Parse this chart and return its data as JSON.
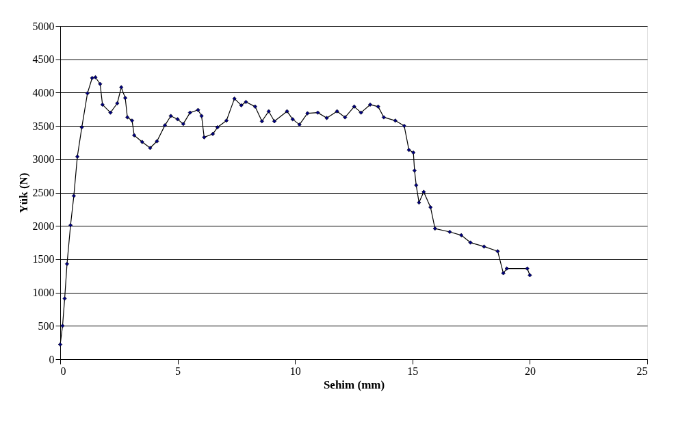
{
  "chart_data": {
    "type": "line",
    "xlabel": "Sehim (mm)",
    "ylabel": "Yük (N)",
    "xlim": [
      0,
      25
    ],
    "ylim": [
      0,
      5000
    ],
    "xticks": [
      0,
      5,
      10,
      15,
      20,
      25
    ],
    "yticks": [
      0,
      500,
      1000,
      1500,
      2000,
      2500,
      3000,
      3500,
      4000,
      4500,
      5000
    ],
    "grid": "y",
    "legend": false,
    "marker": "diamond",
    "line_style": "solid",
    "series": [
      {
        "color": "#000080",
        "x": [
          0,
          0.1,
          0.19,
          0.29,
          0.44,
          0.58,
          0.73,
          0.92,
          1.16,
          1.36,
          1.5,
          1.7,
          1.8,
          2.14,
          2.43,
          2.6,
          2.77,
          2.86,
          3.06,
          3.15,
          3.49,
          3.83,
          4.12,
          4.46,
          4.71,
          5.0,
          5.24,
          5.53,
          5.87,
          6.02,
          6.13,
          6.5,
          6.7,
          7.08,
          7.42,
          7.71,
          7.91,
          8.3,
          8.59,
          8.88,
          9.12,
          9.66,
          9.9,
          10.19,
          10.53,
          10.97,
          11.35,
          11.79,
          12.13,
          12.52,
          12.81,
          13.2,
          13.54,
          13.78,
          14.27,
          14.65,
          14.85,
          15.04,
          15.09,
          15.16,
          15.28,
          15.48,
          15.77,
          15.96,
          16.59,
          17.08,
          17.47,
          18.05,
          18.63,
          18.87,
          19.02,
          19.89,
          20.0
        ],
        "values": [
          220,
          500,
          910,
          1430,
          2010,
          2450,
          3040,
          3480,
          3990,
          4220,
          4230,
          4130,
          3820,
          3700,
          3840,
          4080,
          3920,
          3630,
          3580,
          3360,
          3260,
          3170,
          3270,
          3510,
          3650,
          3600,
          3530,
          3700,
          3740,
          3650,
          3330,
          3380,
          3480,
          3580,
          3910,
          3810,
          3860,
          3790,
          3570,
          3720,
          3570,
          3720,
          3600,
          3520,
          3690,
          3700,
          3620,
          3720,
          3630,
          3790,
          3700,
          3820,
          3790,
          3630,
          3580,
          3500,
          3140,
          3100,
          2830,
          2610,
          2350,
          2510,
          2280,
          1960,
          1910,
          1860,
          1750,
          1690,
          1620,
          1290,
          1360,
          1360,
          1260
        ]
      }
    ]
  }
}
